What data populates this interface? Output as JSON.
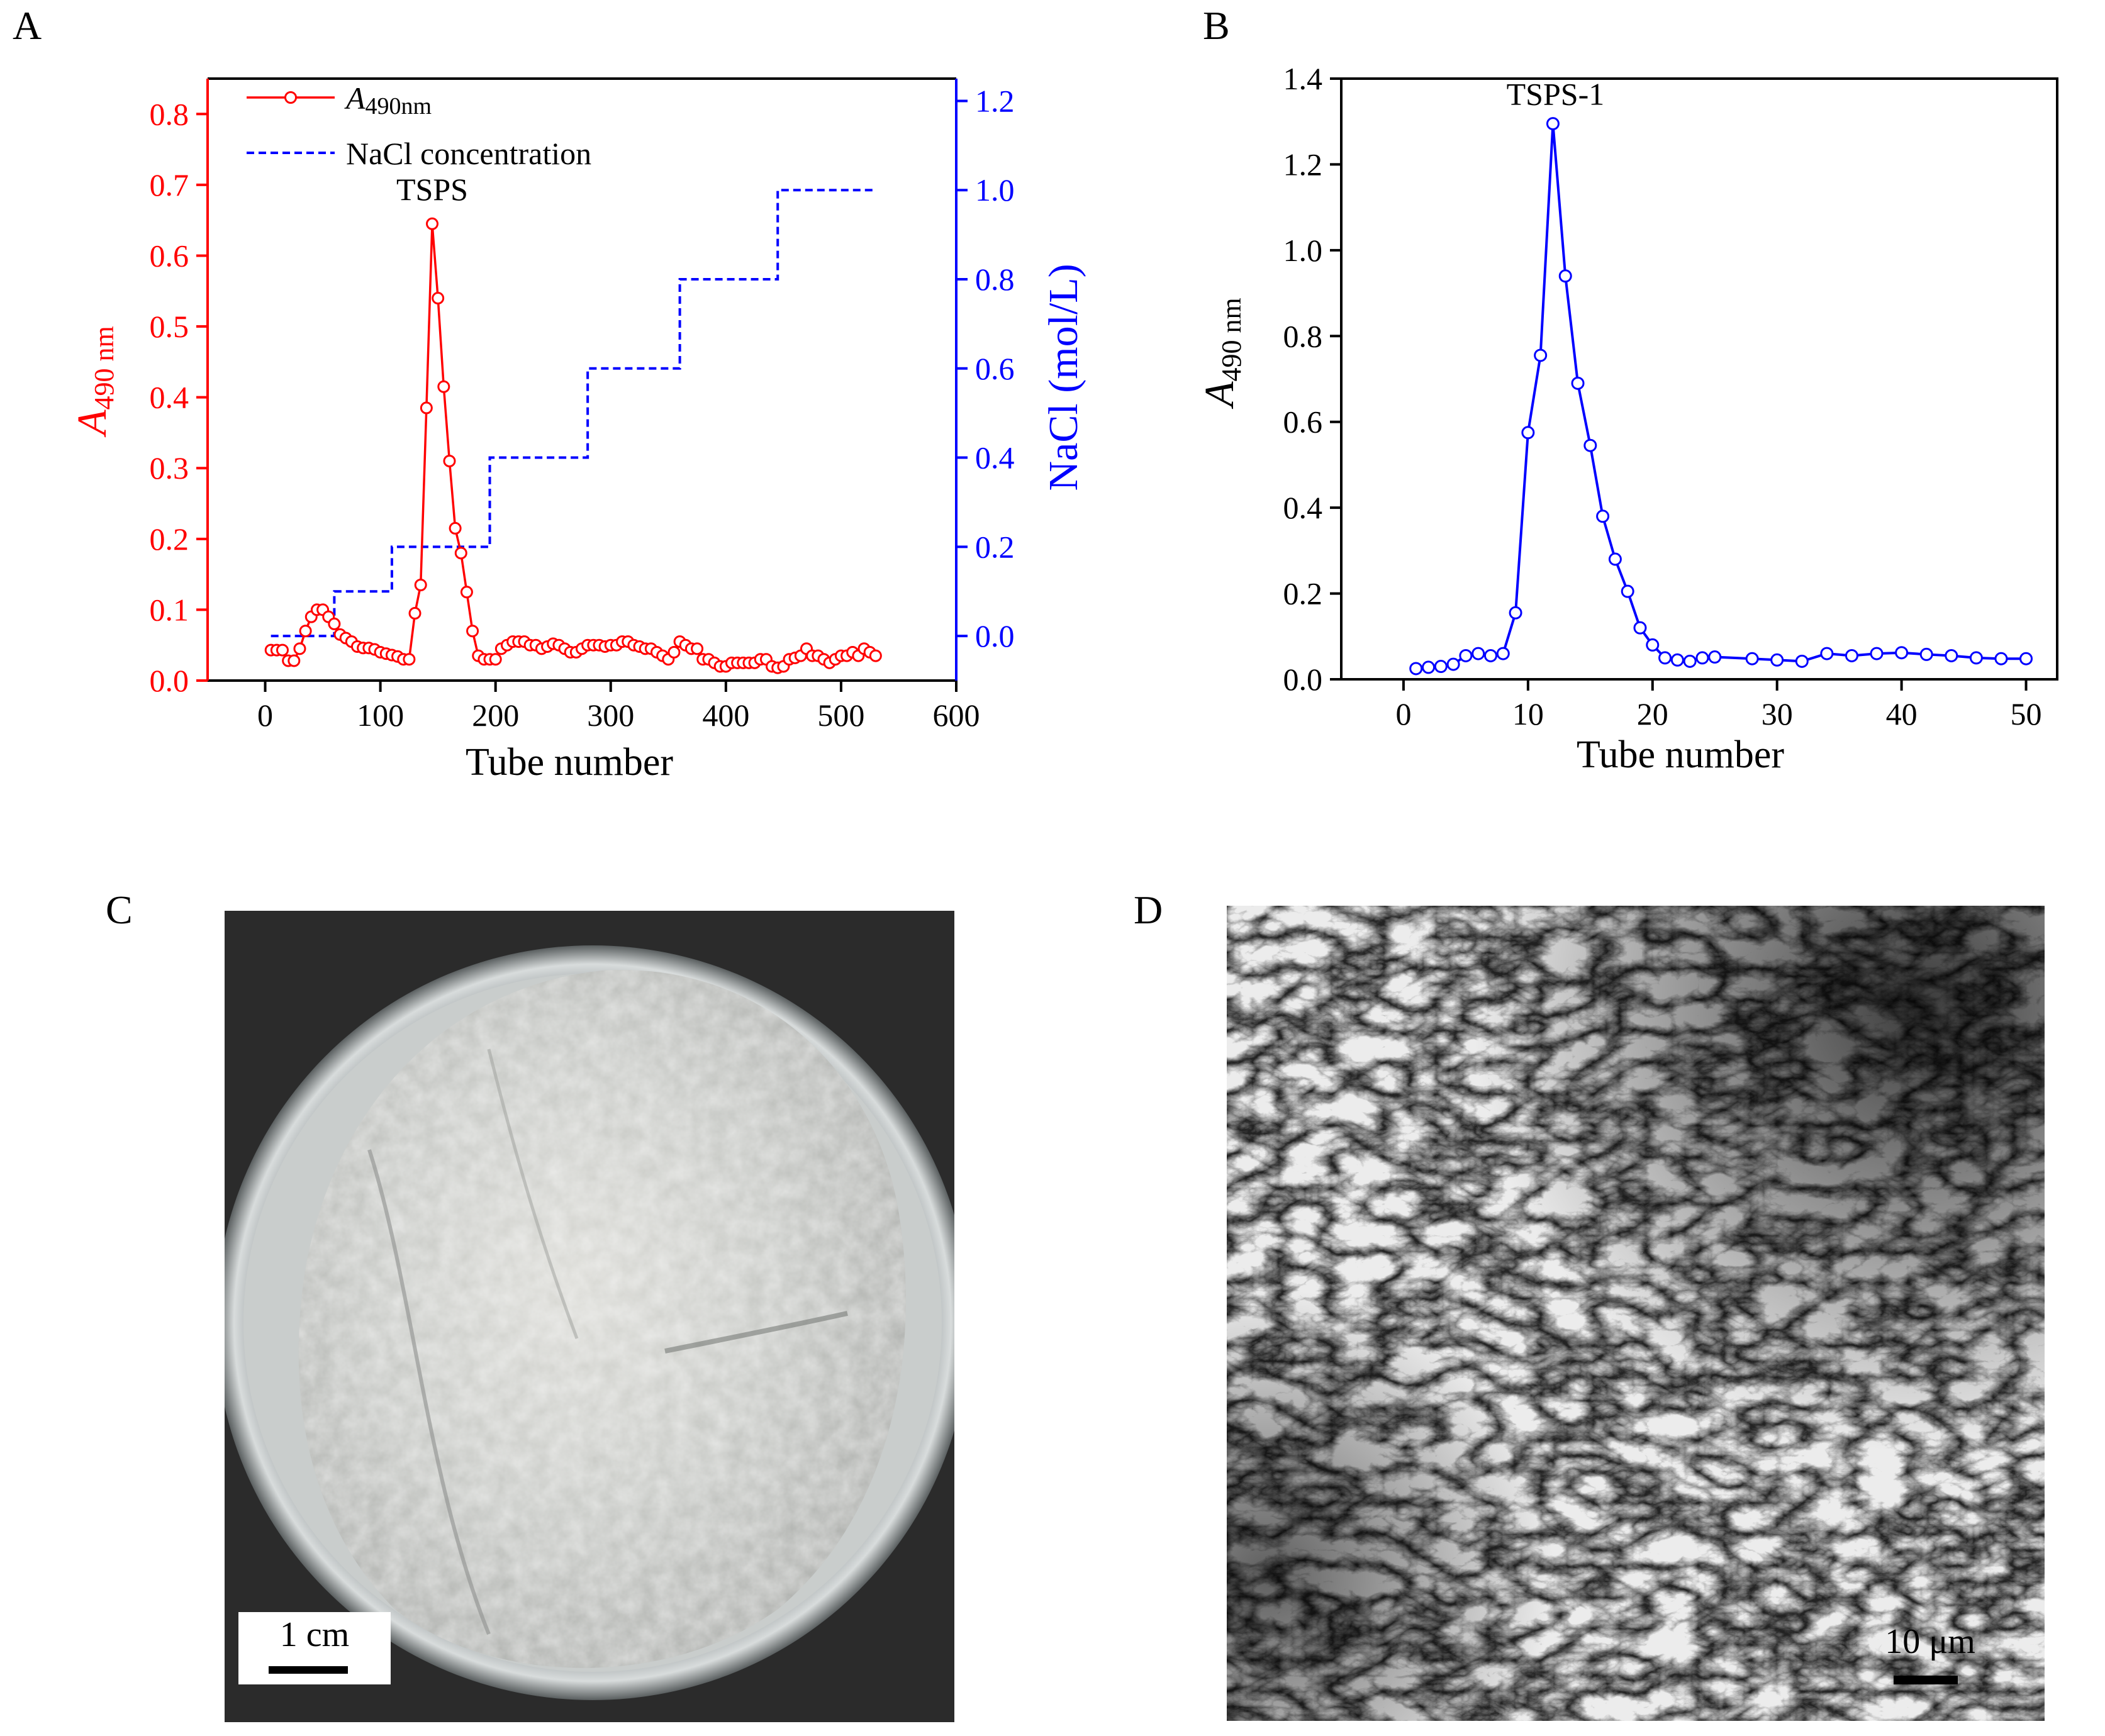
{
  "panels": {
    "a": "A",
    "b": "B",
    "c": "C",
    "d": "D"
  },
  "chart_data": [
    {
      "panel": "A",
      "type": "line",
      "xlabel": "Tube number",
      "ylabel_left": "A",
      "ylabel_left_sub": "490 nm",
      "ylabel_right": "NaCl (mol/L)",
      "xlim": [
        -50,
        600
      ],
      "ylim_left": [
        0,
        0.85
      ],
      "ylim_right": [
        -0.1,
        1.25
      ],
      "xticks": [
        0,
        100,
        200,
        300,
        400,
        500,
        600
      ],
      "yticks_left": [
        0.0,
        0.1,
        0.2,
        0.3,
        0.4,
        0.5,
        0.6,
        0.7,
        0.8
      ],
      "yticks_right": [
        0.0,
        0.2,
        0.4,
        0.6,
        0.8,
        1.0,
        1.2
      ],
      "legend": {
        "placement": "top-left",
        "entry1_main": "A",
        "entry1_sub": "490nm",
        "entry2": "NaCl concentration"
      },
      "annotation": "TSPS",
      "colors": {
        "absorbance": "#ff0000",
        "nacl": "#0000ff"
      },
      "series": [
        {
          "name": "A490nm",
          "axis": "left",
          "x": [
            5,
            10,
            15,
            20,
            25,
            30,
            35,
            40,
            45,
            50,
            55,
            60,
            65,
            70,
            75,
            80,
            85,
            90,
            95,
            100,
            105,
            110,
            115,
            120,
            125,
            130,
            135,
            140,
            145,
            150,
            155,
            160,
            165,
            170,
            175,
            180,
            185,
            190,
            195,
            200,
            205,
            210,
            215,
            220,
            225,
            230,
            235,
            240,
            245,
            250,
            255,
            260,
            265,
            270,
            275,
            280,
            285,
            290,
            295,
            300,
            305,
            310,
            315,
            320,
            325,
            330,
            335,
            340,
            345,
            350,
            355,
            360,
            365,
            370,
            375,
            380,
            385,
            390,
            395,
            400,
            405,
            410,
            415,
            420,
            425,
            430,
            435,
            440,
            445,
            450,
            455,
            460,
            465,
            470,
            475,
            480,
            485,
            490,
            495,
            500,
            505,
            510,
            515,
            520,
            525,
            530
          ],
          "y": [
            0.043,
            0.043,
            0.043,
            0.028,
            0.028,
            0.045,
            0.07,
            0.09,
            0.1,
            0.1,
            0.09,
            0.08,
            0.065,
            0.06,
            0.055,
            0.048,
            0.046,
            0.046,
            0.044,
            0.04,
            0.038,
            0.036,
            0.034,
            0.03,
            0.03,
            0.095,
            0.135,
            0.385,
            0.645,
            0.54,
            0.415,
            0.31,
            0.215,
            0.18,
            0.125,
            0.07,
            0.035,
            0.03,
            0.03,
            0.03,
            0.045,
            0.05,
            0.055,
            0.055,
            0.055,
            0.05,
            0.05,
            0.045,
            0.048,
            0.052,
            0.05,
            0.045,
            0.04,
            0.04,
            0.045,
            0.05,
            0.05,
            0.05,
            0.048,
            0.05,
            0.05,
            0.055,
            0.055,
            0.05,
            0.048,
            0.045,
            0.045,
            0.04,
            0.035,
            0.03,
            0.04,
            0.055,
            0.05,
            0.045,
            0.045,
            0.03,
            0.03,
            0.025,
            0.02,
            0.02,
            0.025,
            0.025,
            0.025,
            0.025,
            0.025,
            0.03,
            0.03,
            0.02,
            0.018,
            0.02,
            0.03,
            0.032,
            0.035,
            0.045,
            0.035,
            0.035,
            0.03,
            0.025,
            0.03,
            0.035,
            0.035,
            0.04,
            0.035,
            0.045,
            0.04,
            0.035
          ]
        },
        {
          "name": "NaCl concentration",
          "axis": "right",
          "step": true,
          "x": [
            5,
            60,
            60,
            110,
            110,
            195,
            195,
            280,
            280,
            360,
            360,
            445,
            445,
            530
          ],
          "y": [
            0,
            0,
            0.1,
            0.1,
            0.2,
            0.2,
            0.4,
            0.4,
            0.6,
            0.6,
            0.8,
            0.8,
            1.0,
            1.0
          ]
        }
      ]
    },
    {
      "panel": "B",
      "type": "line",
      "xlabel": "Tube number",
      "ylabel_left": "A",
      "ylabel_left_sub": "490 nm",
      "xlim": [
        -5,
        52.5
      ],
      "ylim": [
        0,
        1.4
      ],
      "xticks": [
        0,
        10,
        20,
        30,
        40,
        50
      ],
      "yticks": [
        0.0,
        0.2,
        0.4,
        0.6,
        0.8,
        1.0,
        1.2,
        1.4
      ],
      "annotation": "TSPS-1",
      "colors": {
        "series": "#0000ff"
      },
      "series": [
        {
          "name": "TSPS-1",
          "x": [
            1,
            2,
            3,
            4,
            5,
            6,
            7,
            8,
            9,
            10,
            11,
            12,
            13,
            14,
            15,
            16,
            17,
            18,
            19,
            20,
            21,
            22,
            23,
            24,
            25,
            28,
            30,
            32,
            34,
            36,
            38,
            40,
            42,
            44,
            46,
            48,
            50
          ],
          "y": [
            0.025,
            0.028,
            0.03,
            0.035,
            0.055,
            0.06,
            0.055,
            0.06,
            0.155,
            0.575,
            0.755,
            1.295,
            0.94,
            0.69,
            0.545,
            0.38,
            0.28,
            0.205,
            0.12,
            0.08,
            0.05,
            0.045,
            0.042,
            0.05,
            0.052,
            0.048,
            0.045,
            0.042,
            0.06,
            0.055,
            0.06,
            0.062,
            0.058,
            0.055,
            0.05,
            0.048,
            0.048
          ]
        }
      ]
    }
  ],
  "photo_c": {
    "scale_label": "1 cm"
  },
  "photo_d": {
    "scale_label": "10 μm"
  }
}
